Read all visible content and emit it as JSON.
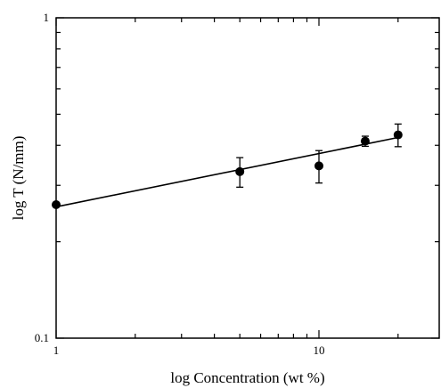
{
  "chart_data": {
    "type": "scatter",
    "title": "",
    "xlabel": "log Concentration (wt %)",
    "ylabel": "log T (N/mm)",
    "xscale": "log",
    "yscale": "log",
    "xlim": [
      1,
      30
    ],
    "ylim": [
      0.1,
      1
    ],
    "grid": false,
    "x_ticks": [
      {
        "value": 1,
        "label": "1"
      },
      {
        "value": 10,
        "label": "10"
      }
    ],
    "y_ticks": [
      {
        "value": 0.1,
        "label": "0.1"
      },
      {
        "value": 1,
        "label": "1"
      }
    ],
    "points": [
      {
        "x": 1,
        "y": 0.261,
        "err": 0
      },
      {
        "x": 5,
        "y": 0.331,
        "err": 0.035
      },
      {
        "x": 10,
        "y": 0.345,
        "err": 0.04
      },
      {
        "x": 15,
        "y": 0.412,
        "err": 0.015
      },
      {
        "x": 20,
        "y": 0.431,
        "err": 0.035
      }
    ],
    "fit_line": {
      "x": [
        1,
        20
      ],
      "y": [
        0.257,
        0.423
      ]
    }
  }
}
